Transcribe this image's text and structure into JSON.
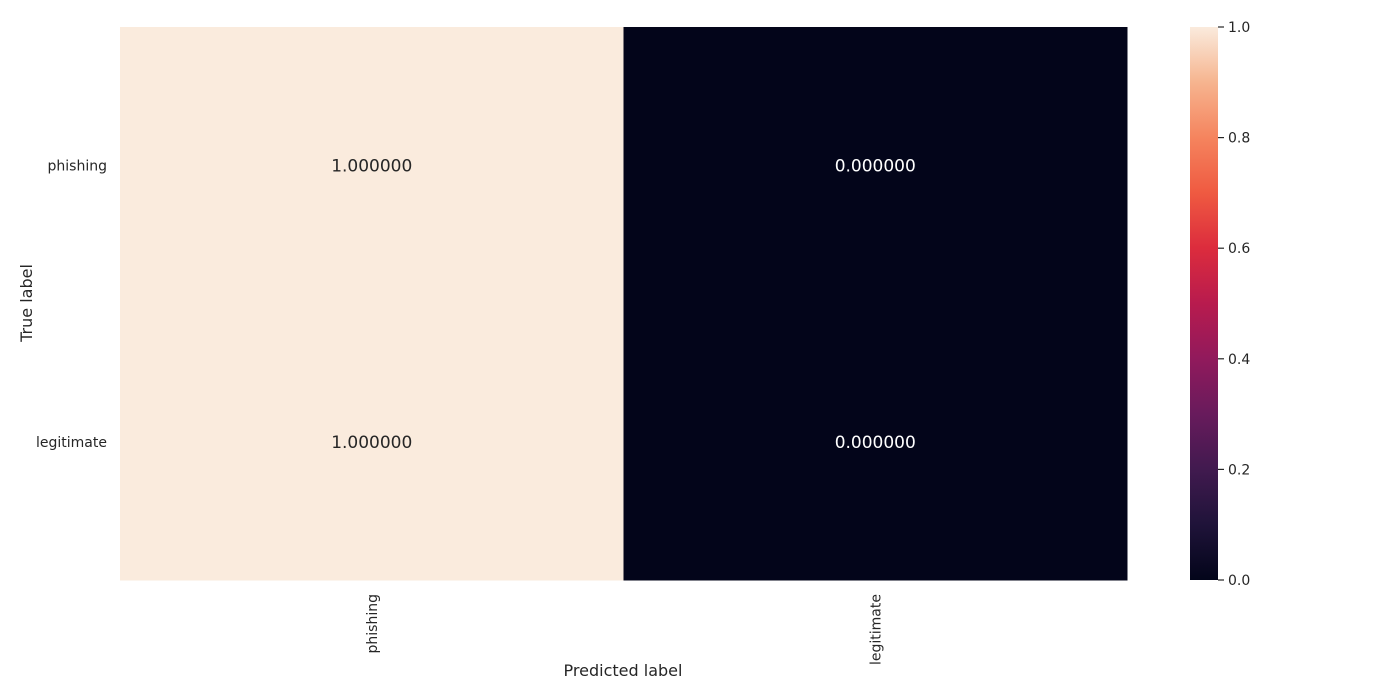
{
  "chart_data": {
    "type": "heatmap",
    "title": "",
    "xlabel": "Predicted label",
    "ylabel": "True label",
    "x_categories": [
      "phishing",
      "legitimate"
    ],
    "y_categories": [
      "phishing",
      "legitimate"
    ],
    "values": [
      [
        1.0,
        0.0
      ],
      [
        1.0,
        0.0
      ]
    ],
    "cell_labels": [
      [
        "1.000000",
        "0.000000"
      ],
      [
        "1.000000",
        "0.000000"
      ]
    ],
    "colorbar": {
      "range": [
        0.0,
        1.0
      ],
      "ticks": [
        0.0,
        0.2,
        0.4,
        0.6,
        0.8,
        1.0
      ],
      "tick_labels": [
        "0.0",
        "0.2",
        "0.4",
        "0.6",
        "0.8",
        "1.0"
      ],
      "colormap": "rocket"
    },
    "colors": {
      "high": "#faebdd",
      "low": "#03051a",
      "text_on_high": "#262626",
      "text_on_low": "#ffffff"
    }
  }
}
